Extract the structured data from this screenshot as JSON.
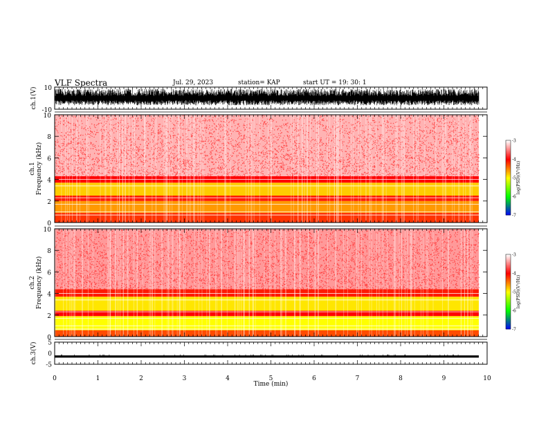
{
  "header": {
    "title": "VLF Spectra",
    "date": "Jul. 29, 2023",
    "station": "station= KAP",
    "start": "start UT =  19: 30: 1"
  },
  "chart_data": [
    {
      "type": "line",
      "panel": "ch1-waveform",
      "ylabel": "ch.1(V)",
      "ylim": [
        -10,
        10
      ],
      "yticks": [
        "10",
        "-10"
      ],
      "xlim": [
        0,
        10
      ],
      "style": "dense black noise filling roughly -6 to 8 V"
    },
    {
      "type": "heatmap",
      "panel": "ch1-spectrogram",
      "ylabel": "ch.1\nFrequency (kHz)",
      "ylabel_line1": "ch.1",
      "ylabel_line2": "Frequency (kHz)",
      "ylim": [
        0,
        10
      ],
      "yticks": [
        "0",
        "2",
        "4",
        "6",
        "8",
        "10"
      ],
      "xlim": [
        0,
        10
      ],
      "colorbar": {
        "label": "log(PSD)(V²/Hz)",
        "range": [
          -7,
          -3
        ],
        "ticks": [
          "-3",
          "-4",
          "-5",
          "-6",
          "-7"
        ]
      },
      "bands": [
        {
          "from_khz": 0,
          "to_khz": 0.9,
          "level": -4.2
        },
        {
          "from_khz": 0.9,
          "to_khz": 2.0,
          "level": -4.6
        },
        {
          "from_khz": 2.0,
          "to_khz": 2.5,
          "level": -4.1
        },
        {
          "from_khz": 2.5,
          "to_khz": 3.7,
          "level": -4.8
        },
        {
          "from_khz": 3.7,
          "to_khz": 4.3,
          "level": -4.0
        },
        {
          "from_khz": 4.3,
          "to_khz": 10,
          "level": -3.3
        }
      ]
    },
    {
      "type": "heatmap",
      "panel": "ch2-spectrogram",
      "ylabel": "ch.2\nFrequency (kHz)",
      "ylabel_line1": "ch.2",
      "ylabel_line2": "Frequency (kHz)",
      "ylim": [
        0,
        10
      ],
      "yticks": [
        "0",
        "2",
        "4",
        "6",
        "8",
        "10"
      ],
      "xlim": [
        0,
        10
      ],
      "colorbar": {
        "label": "log(PSD)(V²/Hz)",
        "range": [
          -7,
          -3
        ],
        "ticks": [
          "-3",
          "-4",
          "-5",
          "-6",
          "-7"
        ]
      },
      "bands": [
        {
          "from_khz": 0,
          "to_khz": 0.6,
          "level": -4.3
        },
        {
          "from_khz": 0.6,
          "to_khz": 1.9,
          "level": -5.0
        },
        {
          "from_khz": 1.9,
          "to_khz": 2.4,
          "level": -4.0
        },
        {
          "from_khz": 2.4,
          "to_khz": 3.7,
          "level": -4.9
        },
        {
          "from_khz": 3.7,
          "to_khz": 4.4,
          "level": -4.1
        },
        {
          "from_khz": 4.4,
          "to_khz": 10,
          "level": -3.4
        }
      ]
    },
    {
      "type": "line",
      "panel": "ch3-waveform",
      "ylabel": "ch.3(V)",
      "ylim": [
        -5,
        5
      ],
      "yticks": [
        "5",
        "0",
        "-5"
      ],
      "xlim": [
        0,
        10
      ],
      "style": "thin black band near -1.5 V"
    }
  ],
  "xaxis": {
    "label": "Time (min)",
    "ticks": [
      "0",
      "1",
      "2",
      "3",
      "4",
      "5",
      "6",
      "7",
      "8",
      "9",
      "10"
    ]
  },
  "colors": {
    "waveform": "#000000",
    "background": "#ffffff",
    "colormap": [
      "#ffffff",
      "#ff0000",
      "#ffff00",
      "#00ff00",
      "#0000ff"
    ]
  }
}
